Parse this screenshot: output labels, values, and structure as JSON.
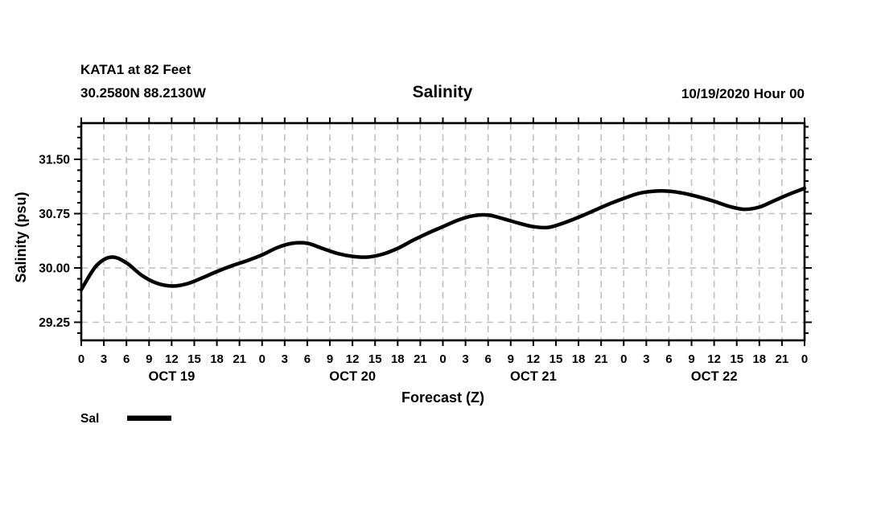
{
  "header": {
    "station_line1": "KATA1 at 82 Feet",
    "station_line2": "30.2580N 88.2130W",
    "title": "Salinity",
    "run_time": "10/19/2020 Hour 00"
  },
  "colors": {
    "background": "#ffffff",
    "line": "#000000",
    "grid": "#bfbfbf",
    "axis": "#000000",
    "text": "#000000"
  },
  "chart_data": {
    "type": "line",
    "title": "Salinity",
    "xlabel": "Forecast (Z)",
    "ylabel": "Salinity (psu)",
    "ylim": [
      29.0,
      32.0
    ],
    "ytick_major": [
      29.25,
      30.0,
      30.75,
      31.5
    ],
    "ytick_labels": [
      "29.25",
      "30.00",
      "30.75",
      "31.50"
    ],
    "ytick_minor_step": 0.15,
    "x_unit": "hours",
    "xlim": [
      0,
      96
    ],
    "xtick_step": 3,
    "xtick_label_cycle": [
      "0",
      "3",
      "6",
      "9",
      "12",
      "15",
      "18",
      "21"
    ],
    "day_labels": [
      {
        "label": "OCT 19",
        "center_hour": 12
      },
      {
        "label": "OCT 20",
        "center_hour": 36
      },
      {
        "label": "OCT 21",
        "center_hour": 60
      },
      {
        "label": "OCT 22",
        "center_hour": 84
      }
    ],
    "grid": true,
    "legend": {
      "label": "Sal",
      "position": "bottom-left"
    },
    "series": [
      {
        "name": "Sal",
        "x": [
          0,
          2,
          4,
          6,
          8,
          10,
          12,
          14,
          16,
          18,
          20,
          22,
          24,
          26,
          28,
          30,
          32,
          34,
          36,
          38,
          40,
          42,
          44,
          46,
          48,
          50,
          52,
          54,
          56,
          58,
          60,
          62,
          64,
          66,
          68,
          70,
          72,
          74,
          76,
          78,
          80,
          82,
          84,
          86,
          88,
          90,
          92,
          94,
          96
        ],
        "values": [
          29.7,
          30.03,
          30.15,
          30.07,
          29.9,
          29.79,
          29.75,
          29.78,
          29.86,
          29.95,
          30.03,
          30.1,
          30.18,
          30.28,
          30.34,
          30.34,
          30.27,
          30.2,
          30.16,
          30.15,
          30.19,
          30.27,
          30.38,
          30.48,
          30.57,
          30.66,
          30.72,
          30.73,
          30.68,
          30.62,
          30.57,
          30.56,
          30.62,
          30.7,
          30.79,
          30.88,
          30.96,
          31.03,
          31.06,
          31.06,
          31.03,
          30.98,
          30.92,
          30.85,
          30.81,
          30.84,
          30.93,
          31.02,
          31.1
        ]
      }
    ]
  }
}
